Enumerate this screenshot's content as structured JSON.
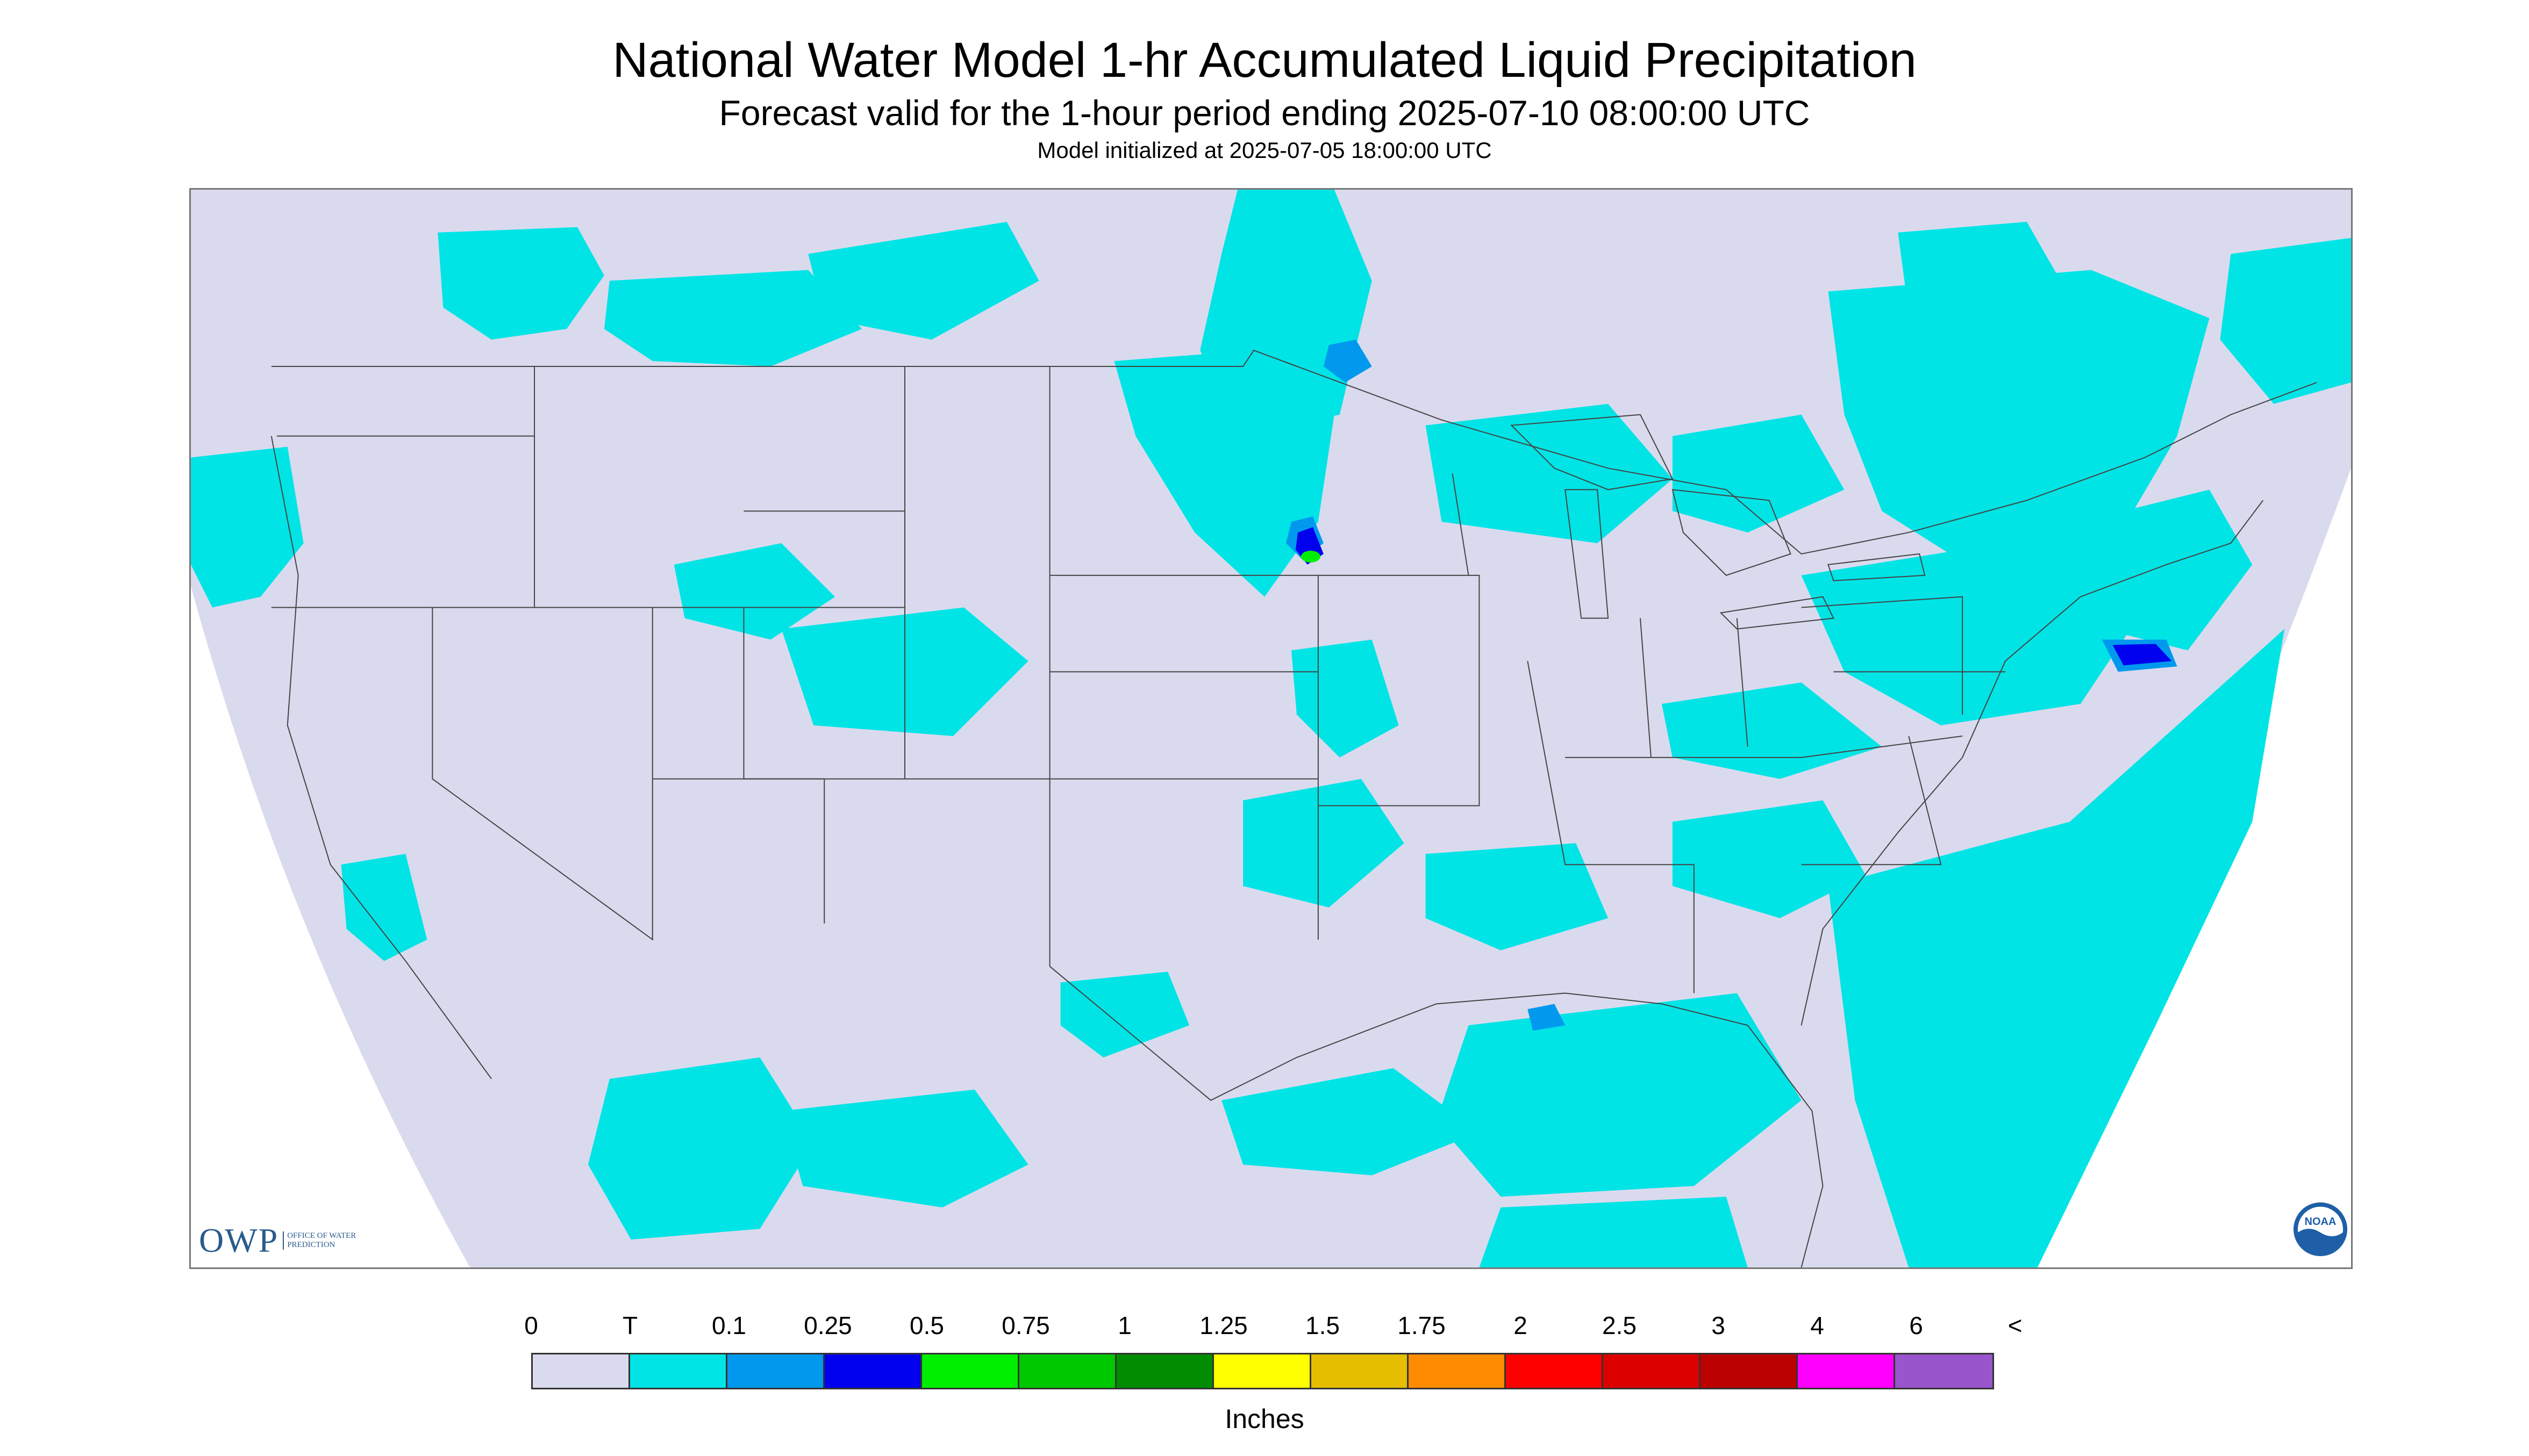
{
  "title": "National Water Model 1-hr Accumulated Liquid Precipitation",
  "subtitle": "Forecast valid for the 1-hour period ending 2025-07-10 08:00:00 UTC",
  "init_text": "Model initialized at 2025-07-05 18:00:00 UTC",
  "logos": {
    "owp_mark": "OWP",
    "owp_sub": "OFFICE OF WATER PREDICTION",
    "noaa": "NOAA"
  },
  "legend": {
    "ticks": [
      "0",
      "T",
      "0.1",
      "0.25",
      "0.5",
      "0.75",
      "1",
      "1.25",
      "1.5",
      "1.75",
      "2",
      "2.5",
      "3",
      "4",
      "6",
      "<"
    ],
    "colors": [
      "#dadaee",
      "#00e4e6",
      "#0099ee",
      "#0000ee",
      "#00ee00",
      "#00c800",
      "#008c00",
      "#ffff00",
      "#e6be00",
      "#ff8c00",
      "#ff0000",
      "#dd0000",
      "#bb0000",
      "#ff00ff",
      "#9955cc"
    ],
    "units": "Inches"
  },
  "map": {
    "background_color": "#dadaee",
    "trace_color": "#00e4e6",
    "light_color": "#0099ee",
    "moderate_color": "#0000ee",
    "heavy_color": "#00ee00",
    "boundary_color": "#444444"
  }
}
